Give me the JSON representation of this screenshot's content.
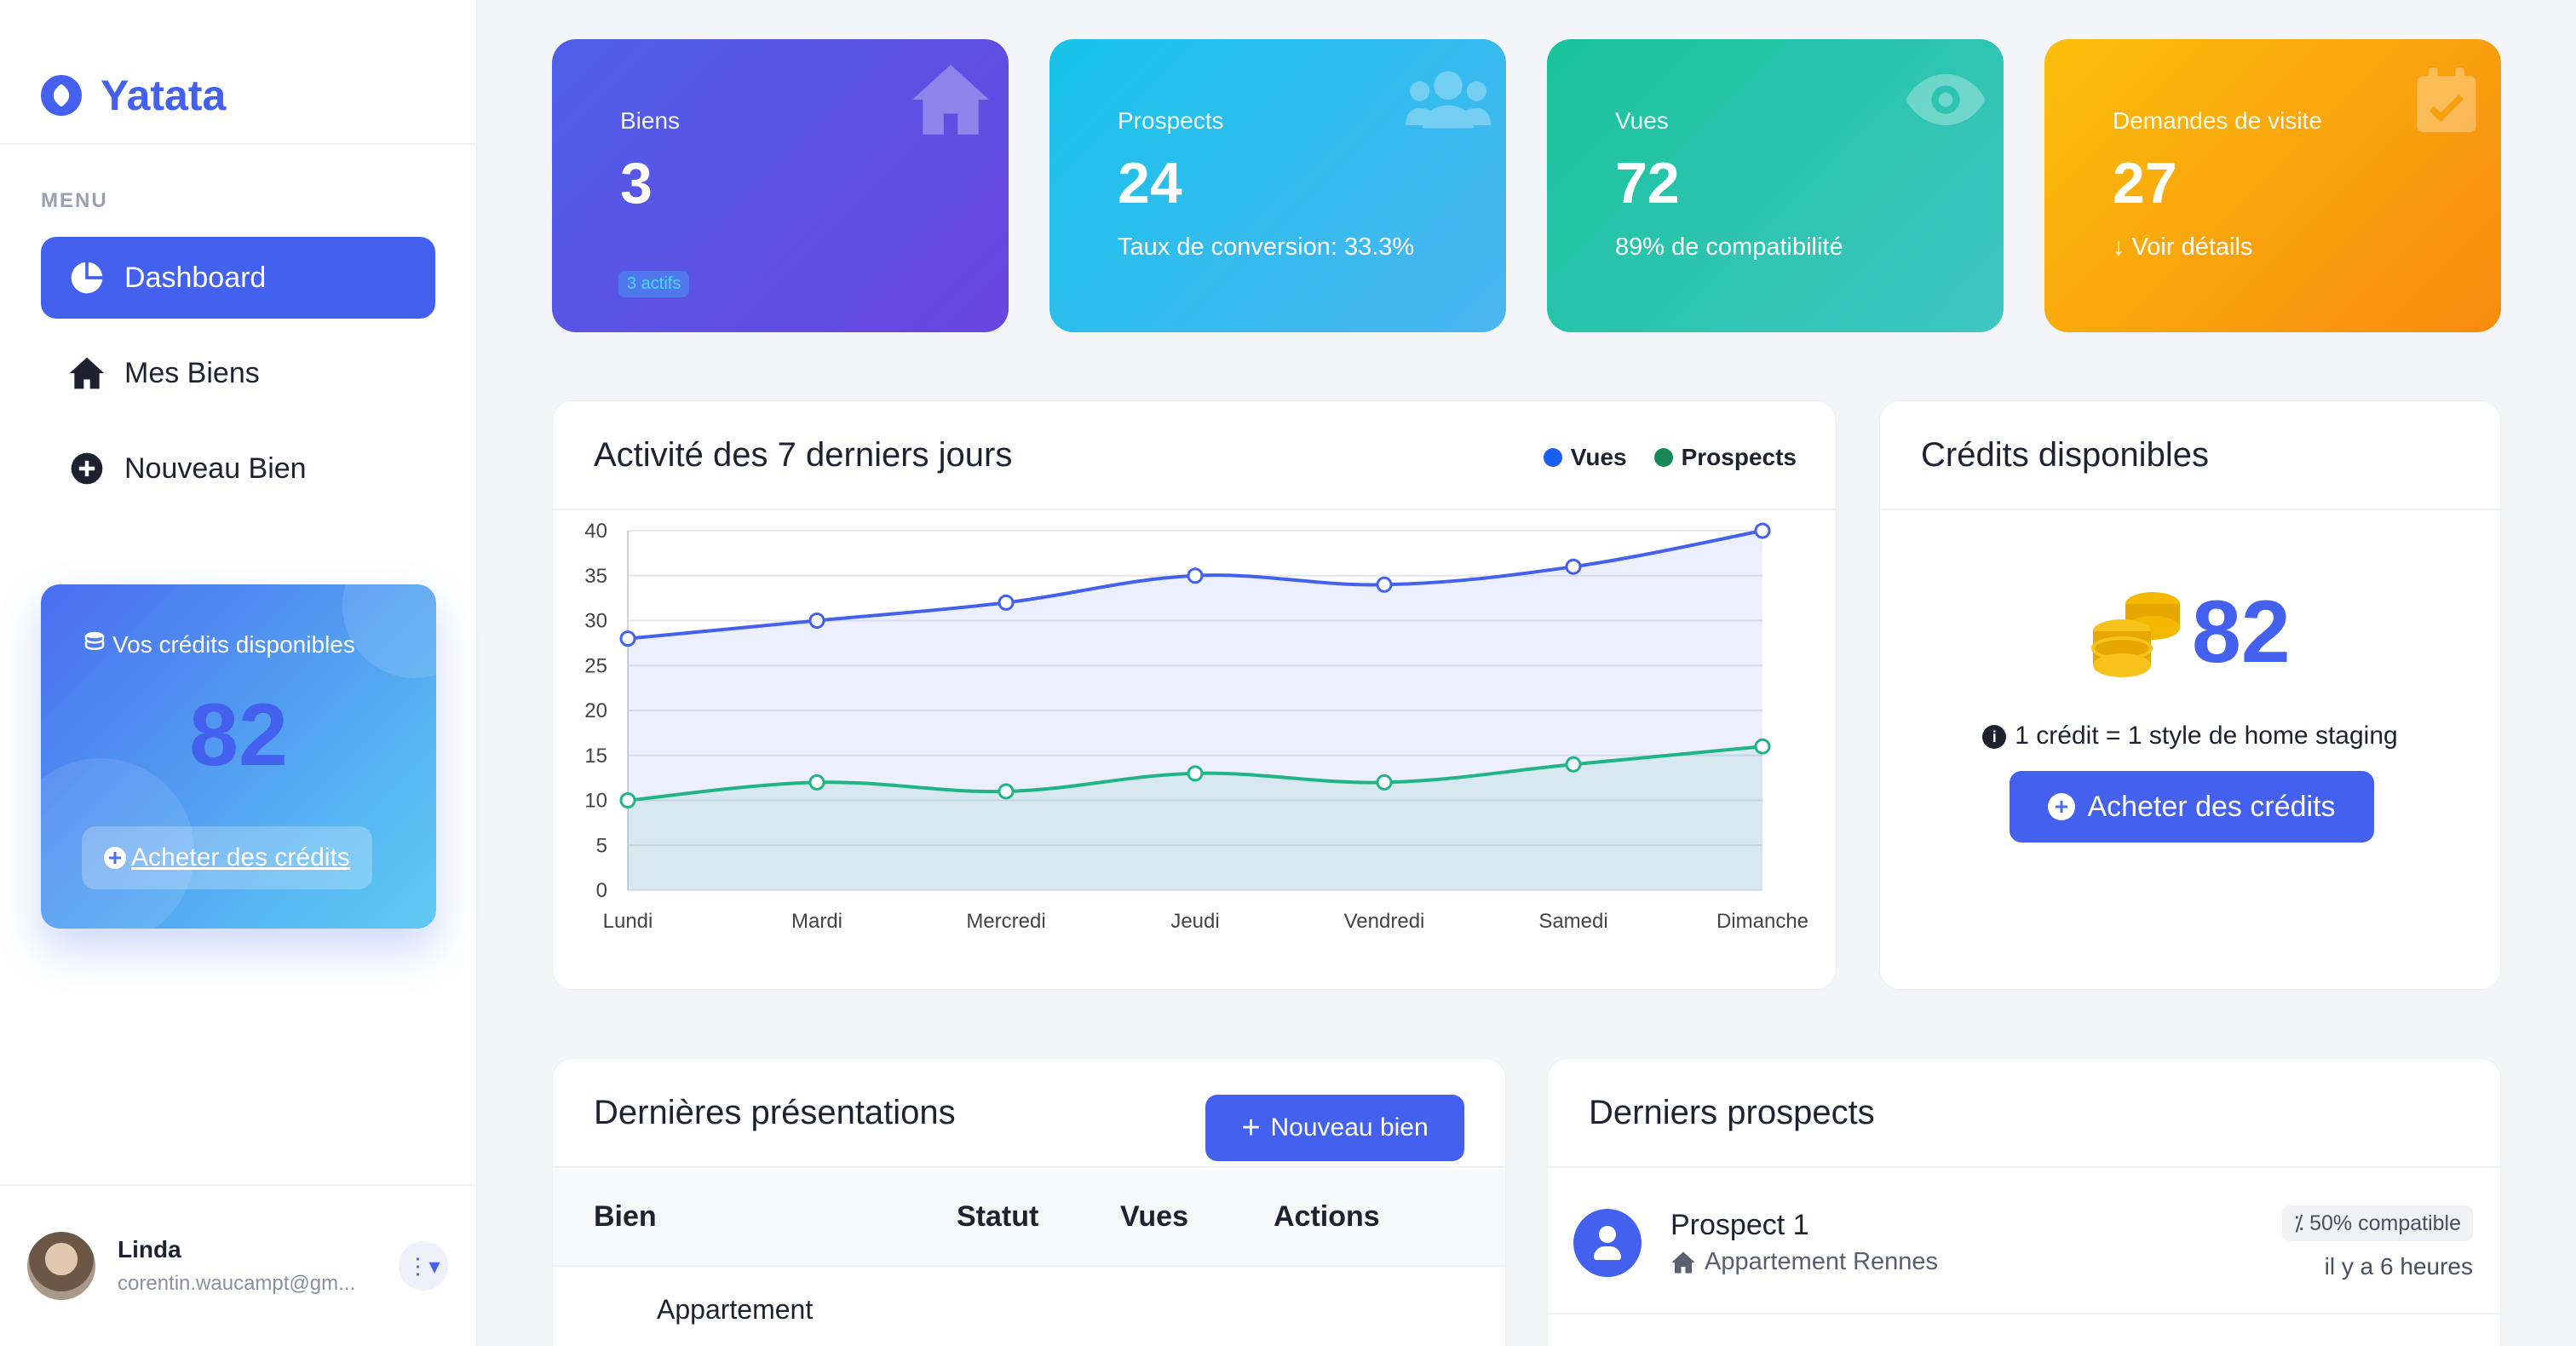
{
  "brand": {
    "name": "Yatata"
  },
  "sidebar": {
    "menu_label": "MENU",
    "items": [
      {
        "label": "Dashboard",
        "icon": "pie-chart-icon",
        "active": true
      },
      {
        "label": "Mes Biens",
        "icon": "home-icon",
        "active": false
      },
      {
        "label": "Nouveau Bien",
        "icon": "plus-circle-icon",
        "active": false
      }
    ],
    "credit_card": {
      "title": "Vos crédits disponibles",
      "value": "82",
      "button": "Acheter des crédits"
    },
    "user": {
      "name": "Linda",
      "email": "corentin.waucampt@gm..."
    }
  },
  "stats": [
    {
      "label": "Biens",
      "value": "3",
      "sub": "3 actifs",
      "icon": "home-icon"
    },
    {
      "label": "Prospects",
      "value": "24",
      "sub": "Taux de conversion: 33.3%",
      "icon": "users-icon"
    },
    {
      "label": "Vues",
      "value": "72",
      "sub": "89% de compatibilité",
      "icon": "eye-icon"
    },
    {
      "label": "Demandes de visite",
      "value": "27",
      "sub": "Voir détails",
      "icon": "calendar-check-icon"
    }
  ],
  "activity": {
    "title": "Activité des 7 derniers jours",
    "legend": [
      "Vues",
      "Prospects"
    ]
  },
  "chart_data": {
    "type": "line",
    "categories": [
      "Lundi",
      "Mardi",
      "Mercredi",
      "Jeudi",
      "Vendredi",
      "Samedi",
      "Dimanche"
    ],
    "series": [
      {
        "name": "Vues",
        "values": [
          28,
          30,
          32,
          35,
          34,
          36,
          40
        ],
        "color": "#4361ee"
      },
      {
        "name": "Prospects",
        "values": [
          10,
          12,
          11,
          13,
          12,
          14,
          16
        ],
        "color": "#20b486"
      }
    ],
    "ylim": [
      0,
      40
    ],
    "yticks": [
      0,
      5,
      10,
      15,
      20,
      25,
      30,
      35,
      40
    ],
    "grid": true,
    "area": true,
    "legend_position": "top-right"
  },
  "credits_panel": {
    "title": "Crédits disponibles",
    "value": "82",
    "info": "1 crédit = 1 style de home staging",
    "button": "Acheter des crédits"
  },
  "presentations": {
    "title": "Dernières présentations",
    "new_button": "Nouveau bien",
    "columns": [
      "Bien",
      "Statut",
      "Vues",
      "Actions"
    ],
    "rows": [
      {
        "bien": "Appartement"
      }
    ]
  },
  "prospects": {
    "title": "Derniers prospects",
    "items": [
      {
        "name": "Prospect 1",
        "property": "Appartement Rennes",
        "compat": "50% compatible",
        "time": "il y a 6 heures"
      }
    ]
  },
  "colors": {
    "accent": "#4361ee",
    "vues": "#4361ee",
    "prospects": "#20b486"
  }
}
